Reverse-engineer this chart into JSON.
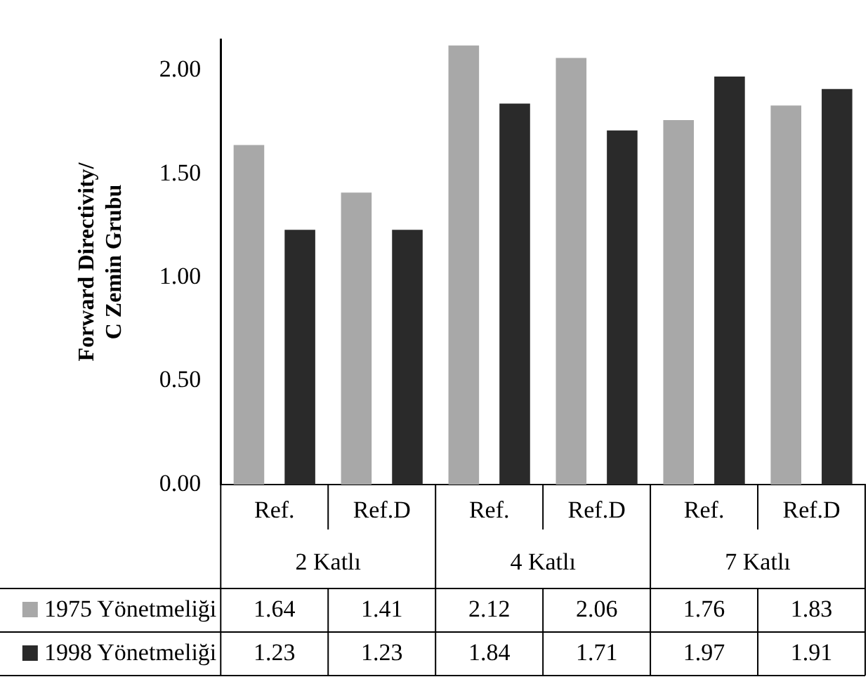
{
  "chart_data": {
    "type": "bar",
    "ylabel": "Forward Directivity/ C Zemin Grubu",
    "categories": [
      "Ref.",
      "Ref.D",
      "Ref.",
      "Ref.D",
      "Ref.",
      "Ref.D"
    ],
    "annotations": [
      "2 Katlı",
      "4 Katlı",
      "7 Katlı"
    ],
    "series": [
      {
        "name": "1975 Yönetmeliği",
        "color": "#a8a8a8",
        "values": [
          1.64,
          1.41,
          2.12,
          2.06,
          1.76,
          1.83
        ]
      },
      {
        "name": "1998 Yönetmeliği",
        "color": "#2a2a2a",
        "values": [
          1.23,
          1.23,
          1.84,
          1.71,
          1.97,
          1.91
        ]
      }
    ],
    "ylim": [
      0,
      2.15
    ],
    "yticks": [
      {
        "value": 0,
        "label": "0.00"
      },
      {
        "value": 0.5,
        "label": "0.50"
      },
      {
        "value": 1,
        "label": "1.00"
      },
      {
        "value": 1.5,
        "label": "1.50"
      },
      {
        "value": 2,
        "label": "2.00"
      }
    ],
    "data_labels": true,
    "grid": false,
    "legend": "bottom left"
  }
}
